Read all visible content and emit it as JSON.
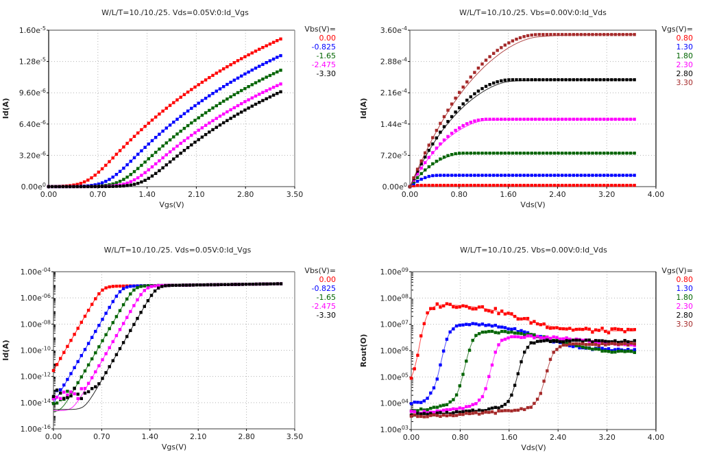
{
  "chart_data": [
    {
      "id": "idvgs-lin",
      "type": "line",
      "title": "W/L/T=10./10./25.  Vds=0.05V:0:Id_Vgs",
      "xlabel": "Vgs(V)",
      "ylabel": "Id(A)",
      "xscale": "linear",
      "yscale": "linear",
      "xlim": [
        0,
        3.5
      ],
      "ylim": [
        0,
        1.6e-05
      ],
      "xticks": [
        0,
        0.7,
        1.4,
        2.1,
        2.8,
        3.5
      ],
      "xtick_labels": [
        "0.00",
        "0.70",
        "1.40",
        "2.10",
        "2.80",
        "3.50"
      ],
      "yticks": [
        0,
        3.2e-06,
        6.4e-06,
        9.6e-06,
        1.28e-05,
        1.6e-05
      ],
      "ytick_labels": [
        [
          "0.00e",
          "0"
        ],
        [
          "3.20e",
          "-6"
        ],
        [
          "6.40e",
          "-6"
        ],
        [
          "9.60e",
          "-6"
        ],
        [
          "1.28e",
          "-5"
        ],
        [
          "1.60e",
          "-5"
        ]
      ],
      "grid": true,
      "legend": {
        "title": "Vbs(V)=",
        "placement": "right"
      },
      "model": "mos_idvgs_linear",
      "x_range": [
        0,
        3.3
      ],
      "n_points": 66,
      "series": [
        {
          "name": "0.00",
          "color": "#ff0000",
          "vth": 0.58,
          "id_at_3v3": 1.51e-05
        },
        {
          "name": "-0.825",
          "color": "#0000ff",
          "vth": 0.86,
          "id_at_3v3": 1.34e-05
        },
        {
          "name": "-1.65",
          "color": "#006400",
          "vth": 1.05,
          "id_at_3v3": 1.19e-05
        },
        {
          "name": "-2.475",
          "color": "#ff00ff",
          "vth": 1.2,
          "id_at_3v3": 1.05e-05
        },
        {
          "name": "-3.30",
          "color": "#000000",
          "vth": 1.36,
          "id_at_3v3": 9.7e-06
        }
      ]
    },
    {
      "id": "idvds",
      "type": "line",
      "title": "W/L/T=10./10./25.  Vbs=0.00V:0:Id_Vds",
      "xlabel": "Vds(V)",
      "ylabel": "Id(A)",
      "xscale": "linear",
      "yscale": "linear",
      "xlim": [
        0,
        4.0
      ],
      "ylim": [
        0,
        0.00036
      ],
      "xticks": [
        0,
        0.8,
        1.6,
        2.4,
        3.2,
        4.0
      ],
      "xtick_labels": [
        "0.00",
        "0.80",
        "1.60",
        "2.40",
        "3.20",
        "4.00"
      ],
      "yticks": [
        0,
        7.2e-05,
        0.000144,
        0.000216,
        0.000288,
        0.00036
      ],
      "ytick_labels": [
        [
          "0.00e",
          "0"
        ],
        [
          "7.20e",
          "-5"
        ],
        [
          "1.44e",
          "-4"
        ],
        [
          "2.16e",
          "-4"
        ],
        [
          "2.88e",
          "-4"
        ],
        [
          "3.60e",
          "-4"
        ]
      ],
      "grid": true,
      "legend": {
        "title": "Vgs(V)=",
        "placement": "right"
      },
      "model": "mos_idvds",
      "x_range": [
        0,
        3.65
      ],
      "n_points": 60,
      "series": [
        {
          "name": "0.80",
          "color": "#ff0000",
          "id_sat": 3e-06,
          "vdsat": 0.15
        },
        {
          "name": "1.30",
          "color": "#0000ff",
          "id_sat": 2.6e-05,
          "vdsat": 0.45
        },
        {
          "name": "1.80",
          "color": "#006400",
          "id_sat": 7.7e-05,
          "vdsat": 0.85
        },
        {
          "name": "2.30",
          "color": "#ff00ff",
          "id_sat": 0.000155,
          "vdsat": 1.25
        },
        {
          "name": "2.80",
          "color": "#000000",
          "id_sat": 0.000246,
          "vdsat": 1.65
        },
        {
          "name": "3.30",
          "color": "#a52a2a",
          "id_sat": 0.00035,
          "vdsat": 2.1
        }
      ]
    },
    {
      "id": "idvgs-log",
      "type": "line",
      "title": "W/L/T=10./10./25.  Vds=0.05V:0:Id_Vgs",
      "xlabel": "Vgs(V)",
      "ylabel": "Id(A)",
      "xscale": "linear",
      "yscale": "log",
      "xlim": [
        0,
        3.5
      ],
      "ylim": [
        1e-16,
        0.0001
      ],
      "xticks": [
        0,
        0.7,
        1.4,
        2.1,
        2.8,
        3.5
      ],
      "xtick_labels": [
        "0.00",
        "0.70",
        "1.40",
        "2.10",
        "2.80",
        "3.50"
      ],
      "yticks": [
        1e-16,
        1e-14,
        1e-12,
        1e-10,
        1e-08,
        1e-06,
        0.0001
      ],
      "ytick_labels": [
        [
          "1.00e",
          "-16"
        ],
        [
          "1.00e",
          "-14"
        ],
        [
          "1.00e",
          "-12"
        ],
        [
          "1.00e",
          "-10"
        ],
        [
          "1.00e",
          "-08"
        ],
        [
          "1.00e",
          "-06"
        ],
        [
          "1.00e",
          "-04"
        ]
      ],
      "grid": true,
      "legend": {
        "title": "Vbs(V)=",
        "placement": "right"
      },
      "model": "mos_idvgs_log",
      "x_range": [
        0,
        3.3
      ],
      "n_points": 66,
      "series": [
        {
          "name": "0.00",
          "color": "#ff0000",
          "vth": 0.6,
          "floor_meas": 4e-14,
          "floor_sim": 3e-15
        },
        {
          "name": "-0.825",
          "color": "#0000ff",
          "vth": 0.88,
          "floor_meas": 3e-14,
          "floor_sim": 1e-15
        },
        {
          "name": "-1.65",
          "color": "#006400",
          "vth": 1.06,
          "floor_meas": 2e-14,
          "floor_sim": 1.8e-15
        },
        {
          "name": "-2.475",
          "color": "#ff00ff",
          "vth": 1.22,
          "floor_meas": 3e-14,
          "floor_sim": 2.4e-15
        },
        {
          "name": "-3.30",
          "color": "#000000",
          "vth": 1.38,
          "floor_meas": 5e-14,
          "floor_sim": 3e-15
        }
      ]
    },
    {
      "id": "rout-vds",
      "type": "line",
      "title": "W/L/T=10./10./25.  Vbs=0.00V:0:Id_Vds",
      "xlabel": "Vds(V)",
      "ylabel": "Rout(O)",
      "xscale": "linear",
      "yscale": "log",
      "xlim": [
        0,
        4.0
      ],
      "ylim": [
        1000.0,
        1000000000.0
      ],
      "xticks": [
        0,
        0.8,
        1.6,
        2.4,
        3.2,
        4.0
      ],
      "xtick_labels": [
        "0.00",
        "0.80",
        "1.60",
        "2.40",
        "3.20",
        "4.00"
      ],
      "yticks": [
        1000.0,
        10000.0,
        100000.0,
        1000000.0,
        10000000.0,
        100000000.0,
        1000000000.0
      ],
      "ytick_labels": [
        [
          "1.00e",
          "03"
        ],
        [
          "1.00e",
          "04"
        ],
        [
          "1.00e",
          "05"
        ],
        [
          "1.00e",
          "06"
        ],
        [
          "1.00e",
          "07"
        ],
        [
          "1.00e",
          "08"
        ],
        [
          "1.00e",
          "09"
        ]
      ],
      "grid": true,
      "legend": {
        "title": "Vgs(V)=",
        "placement": "right"
      },
      "model": "rout",
      "x_range": [
        0,
        3.65
      ],
      "n_points": 70,
      "series": [
        {
          "name": "0.80",
          "color": "#ff0000",
          "r0": 45000.0,
          "rpeak": 60000000.0,
          "vknee": 0.15,
          "rend": 5500000.0,
          "line_color": "#ff3030"
        },
        {
          "name": "1.30",
          "color": "#0000ff",
          "r0": 10000.0,
          "rpeak": 11000000.0,
          "vknee": 0.5,
          "rend": 1000000.0,
          "line_color": "#3030ff"
        },
        {
          "name": "1.80",
          "color": "#006400",
          "r0": 5500.0,
          "rpeak": 5500000.0,
          "vknee": 0.88,
          "rend": 800000.0,
          "line_color": "#207020"
        },
        {
          "name": "2.30",
          "color": "#ff00ff",
          "r0": 4500.0,
          "rpeak": 3500000.0,
          "vknee": 1.3,
          "rend": 1500000.0,
          "line_color": "#ff30ff"
        },
        {
          "name": "2.80",
          "color": "#000000",
          "r0": 3800.0,
          "rpeak": 2400000.0,
          "vknee": 1.75,
          "rend": 2100000.0,
          "line_color": "#000000"
        },
        {
          "name": "3.30",
          "color": "#a52a2a",
          "r0": 3300.0,
          "rpeak": 1700000.0,
          "vknee": 2.2,
          "rend": 1900000.0,
          "line_color": "#b04040"
        }
      ]
    }
  ]
}
